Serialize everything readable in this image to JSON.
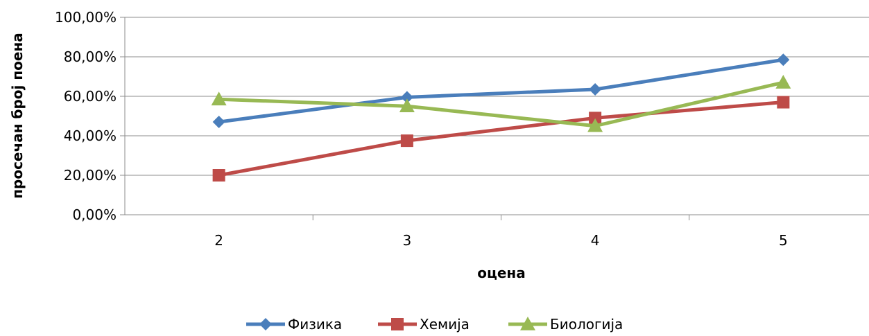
{
  "chart_data": {
    "type": "line",
    "title": "",
    "xlabel": "оцена",
    "ylabel": "просечан број поена",
    "categories": [
      "2",
      "3",
      "4",
      "5"
    ],
    "ylim": [
      0,
      100
    ],
    "yticks": [
      0,
      20,
      40,
      60,
      80,
      100
    ],
    "ytick_labels": [
      "0,00%",
      "20,00%",
      "40,00%",
      "60,00%",
      "80,00%",
      "100,00%"
    ],
    "grid": true,
    "legend_position": "bottom",
    "series": [
      {
        "name": "Физика",
        "values": [
          47,
          59.5,
          63.5,
          78.5
        ],
        "color": "#4a7ebb",
        "marker": "diamond"
      },
      {
        "name": "Хемија",
        "values": [
          20,
          37.5,
          49,
          57
        ],
        "color": "#be4b48",
        "marker": "square"
      },
      {
        "name": "Биологија",
        "values": [
          58.5,
          55,
          45,
          67
        ],
        "color": "#98b954",
        "marker": "triangle"
      }
    ]
  }
}
